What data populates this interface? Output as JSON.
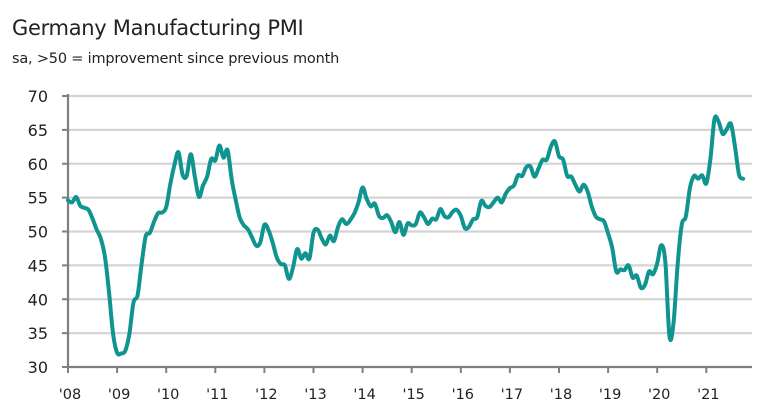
{
  "chart_data": {
    "type": "line",
    "title": "Germany Manufacturing PMI",
    "subtitle": "sa, >50 = improvement since previous month",
    "xlabel": "",
    "ylabel": "",
    "ylim": [
      30,
      70
    ],
    "yticks": [
      30,
      35,
      40,
      45,
      50,
      55,
      60,
      65,
      70
    ],
    "ytick_labels": [
      "30",
      "35",
      "40",
      "45",
      "50",
      "55",
      "60",
      "65",
      "70"
    ],
    "xlim": [
      2008.0,
      2021.9
    ],
    "xticks": [
      2008,
      2009,
      2010,
      2011,
      2012,
      2013,
      2014,
      2015,
      2016,
      2017,
      2018,
      2019,
      2020,
      2021
    ],
    "xtick_labels": [
      "'08",
      "'09",
      "'10",
      "'11",
      "'12",
      "'13",
      "'14",
      "'15",
      "'16",
      "'17",
      "'18",
      "'19",
      "'20",
      "'21"
    ],
    "grid": true,
    "legend": "none",
    "line_color": "#0f9490",
    "series": [
      {
        "name": "Germany Manufacturing PMI",
        "start": "2008-01",
        "frequency": "monthly",
        "values": [
          54.6,
          54.3,
          55.1,
          53.8,
          53.5,
          53.2,
          51.9,
          50.3,
          49.0,
          46.4,
          41.2,
          35.0,
          32.1,
          32.0,
          32.4,
          34.9,
          39.5,
          40.6,
          45.3,
          49.3,
          49.8,
          51.4,
          52.7,
          52.8,
          53.6,
          57.0,
          59.8,
          61.7,
          58.4,
          58.2,
          61.4,
          58.1,
          55.1,
          56.8,
          58.1,
          60.7,
          60.5,
          62.7,
          60.9,
          62.0,
          57.7,
          54.6,
          52.0,
          50.9,
          50.3,
          49.1,
          47.9,
          48.4,
          51.0,
          50.2,
          48.4,
          46.2,
          45.2,
          45.0,
          43.0,
          44.7,
          47.4,
          46.0,
          46.8,
          46.0,
          49.8,
          50.3,
          49.0,
          48.1,
          49.4,
          48.6,
          50.7,
          51.8,
          51.1,
          51.7,
          52.7,
          54.3,
          56.5,
          54.8,
          53.7,
          54.1,
          52.3,
          52.0,
          52.4,
          51.4,
          49.9,
          51.4,
          49.5,
          51.2,
          50.9,
          51.1,
          52.8,
          52.1,
          51.1,
          51.9,
          51.8,
          53.3,
          52.3,
          52.1,
          52.9,
          53.2,
          52.3,
          50.5,
          50.7,
          51.8,
          52.1,
          54.5,
          53.8,
          53.6,
          54.3,
          55.0,
          54.3,
          55.6,
          56.4,
          56.8,
          58.3,
          58.2,
          59.5,
          59.6,
          58.1,
          59.3,
          60.6,
          60.6,
          62.5,
          63.3,
          61.1,
          60.6,
          58.2,
          58.1,
          56.9,
          55.9,
          56.9,
          55.9,
          53.7,
          52.2,
          51.8,
          51.5,
          49.7,
          47.6,
          44.1,
          44.4,
          44.3,
          45.0,
          43.2,
          43.5,
          41.7,
          42.1,
          44.1,
          43.7,
          45.3,
          48.0,
          45.4,
          34.5,
          36.6,
          45.2,
          51.0,
          52.2,
          56.4,
          58.2,
          57.8,
          58.3,
          57.1,
          60.7,
          66.6,
          66.2,
          64.4,
          65.1,
          65.9,
          62.6,
          58.4,
          57.8
        ]
      }
    ]
  }
}
